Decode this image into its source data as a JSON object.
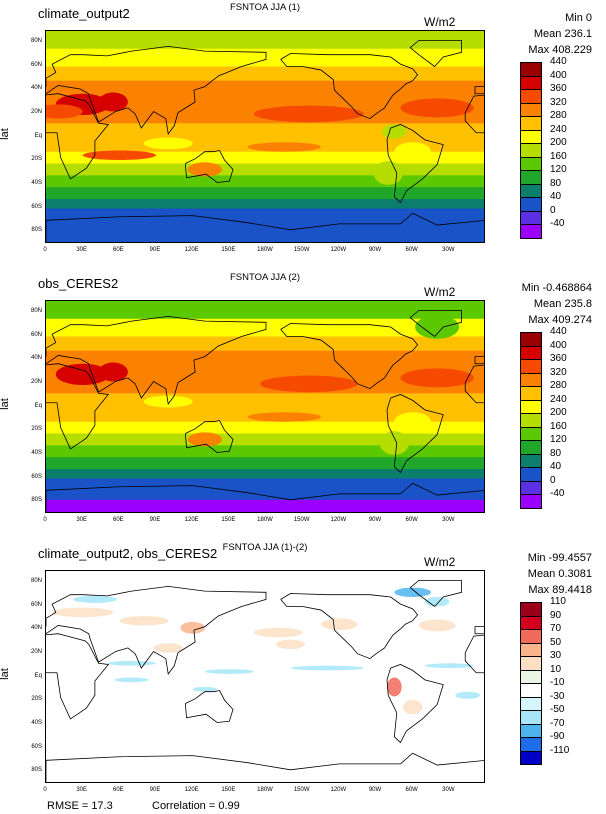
{
  "panels": [
    {
      "id": "p1",
      "title_left": "climate_output2",
      "title_center": "FSNTOA JJA (1)",
      "units": "W/m2",
      "stats": {
        "min": "Min 0",
        "mean": "Mean 236.1",
        "max": "Max 408.229"
      },
      "colorbar_labels": [
        "440",
        "400",
        "360",
        "320",
        "280",
        "240",
        "200",
        "160",
        "120",
        "80",
        "40",
        "0",
        "-40"
      ],
      "colorbar_colors": [
        "#9b0000",
        "#d60000",
        "#f54a00",
        "#fb8200",
        "#ffc000",
        "#ffff00",
        "#b6dd00",
        "#5cc800",
        "#20a62a",
        "#0c7e6c",
        "#1a53c8",
        "#5b2fe2",
        "#9b00ff"
      ]
    },
    {
      "id": "p2",
      "title_left": "obs_CERES2",
      "title_center": "FSNTOA JJA (2)",
      "units": "W/m2",
      "stats": {
        "min": "Min -0.468864",
        "mean": "Mean 235.8",
        "max": "Max 409.274"
      },
      "colorbar_labels": [
        "440",
        "400",
        "360",
        "320",
        "280",
        "240",
        "200",
        "160",
        "120",
        "80",
        "40",
        "0",
        "-40"
      ],
      "colorbar_colors": [
        "#9b0000",
        "#d60000",
        "#f54a00",
        "#fb8200",
        "#ffc000",
        "#ffff00",
        "#b6dd00",
        "#5cc800",
        "#20a62a",
        "#0c7e6c",
        "#1a53c8",
        "#5b2fe2",
        "#9b00ff"
      ]
    },
    {
      "id": "p3",
      "title_left": "climate_output2, obs_CERES2",
      "title_center": "FSNTOA JJA (1)-(2)",
      "units": "W/m2",
      "stats": {
        "min": "Min -99.4557",
        "mean": "Mean 0.3081",
        "max": "Max 89.4418"
      },
      "colorbar_labels": [
        "110",
        "90",
        "70",
        "50",
        "30",
        "10",
        "-10",
        "-30",
        "-50",
        "-70",
        "-90",
        "-110"
      ],
      "colorbar_colors": [
        "#9b0018",
        "#d2001e",
        "#f06b5a",
        "#f9b48a",
        "#fde0c4",
        "#e9f6e6",
        "#ffffff",
        "#d6f4fb",
        "#a6e6f8",
        "#4fb4ee",
        "#1e6ce8",
        "#0000c8"
      ]
    }
  ],
  "axes": {
    "lat_title": "lat",
    "y_ticks": [
      "80N",
      "60N",
      "40N",
      "20N",
      "Eq",
      "20S",
      "40S",
      "60S",
      "80S"
    ],
    "x_ticks": [
      "0",
      "30E",
      "60E",
      "90E",
      "120E",
      "150E",
      "180W",
      "150W",
      "120W",
      "90W",
      "60W",
      "30W"
    ]
  },
  "footer": {
    "rmse": "RMSE = 17.3",
    "correlation": "Correlation = 0.99"
  },
  "chart_data": [
    {
      "type": "heatmap",
      "title": "FSNTOA JJA (1)",
      "ylabel": "lat",
      "xlim": [
        0,
        360
      ],
      "ylim": [
        -90,
        90
      ],
      "units": "W/m2",
      "min": 0,
      "mean": 236.1,
      "max": 408.229
    },
    {
      "type": "heatmap",
      "title": "FSNTOA JJA (2)",
      "ylabel": "lat",
      "xlim": [
        0,
        360
      ],
      "ylim": [
        -90,
        90
      ],
      "units": "W/m2",
      "min": -0.468864,
      "mean": 235.8,
      "max": 409.274
    },
    {
      "type": "heatmap",
      "title": "FSNTOA JJA (1)-(2)",
      "ylabel": "lat",
      "xlim": [
        0,
        360
      ],
      "ylim": [
        -90,
        90
      ],
      "units": "W/m2",
      "min": -99.4557,
      "mean": 0.3081,
      "max": 89.4418,
      "rmse": 17.3,
      "correlation": 0.99
    }
  ]
}
